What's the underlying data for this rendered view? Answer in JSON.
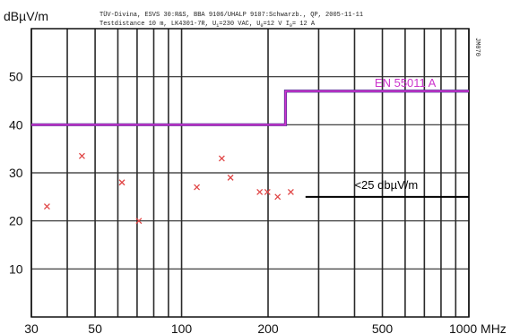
{
  "chart_data": {
    "type": "scatter",
    "title_line1": "TÜV-Divina, ESVS 30:R&S, BBA 9106/UHALP 9107:Schwarzb., QP, 2005-11-11",
    "title_line2": "Testdistance 10 m, LK4301-7R, U",
    "title_line2_sub1": "1",
    "title_line2_mid1": "=230 VAC, U",
    "title_line2_sub2": "0",
    "title_line2_mid2": "=12 V I",
    "title_line2_sub3": "0",
    "title_line2_end": "= 12 A",
    "ylabel": "dBµV/m",
    "xunit": "MHz",
    "side_code": "JM070",
    "x_scale": "log",
    "xlim": [
      30,
      1000
    ],
    "ylim": [
      0,
      60
    ],
    "x_ticks": [
      30,
      50,
      100,
      200,
      500,
      1000
    ],
    "x_tick_labels": [
      "30",
      "50",
      "100",
      "200",
      "500",
      "1000 MHz"
    ],
    "y_ticks": [
      10,
      20,
      30,
      40,
      50
    ],
    "y_tick_labels": [
      "10",
      "20",
      "30",
      "40",
      "50"
    ],
    "points": [
      {
        "x": 34,
        "y": 23
      },
      {
        "x": 45,
        "y": 33.5
      },
      {
        "x": 62,
        "y": 28
      },
      {
        "x": 71,
        "y": 20
      },
      {
        "x": 113,
        "y": 27
      },
      {
        "x": 138,
        "y": 33
      },
      {
        "x": 148,
        "y": 29
      },
      {
        "x": 187,
        "y": 26
      },
      {
        "x": 199,
        "y": 26
      },
      {
        "x": 216,
        "y": 25
      },
      {
        "x": 240,
        "y": 26
      }
    ],
    "limit_line": {
      "name": "EN 55011 A",
      "color": "#cc33cc",
      "segments": [
        {
          "x_start": 30,
          "x_end": 230,
          "y": 40
        },
        {
          "x_start": 230,
          "x_end": 1000,
          "y": 47
        }
      ]
    },
    "reference_line": {
      "label": "<25 dbµV/m",
      "x_start": 270,
      "x_end": 1000,
      "y": 25,
      "color": "#000000"
    },
    "marker_color": "#e04545",
    "grid": true
  }
}
